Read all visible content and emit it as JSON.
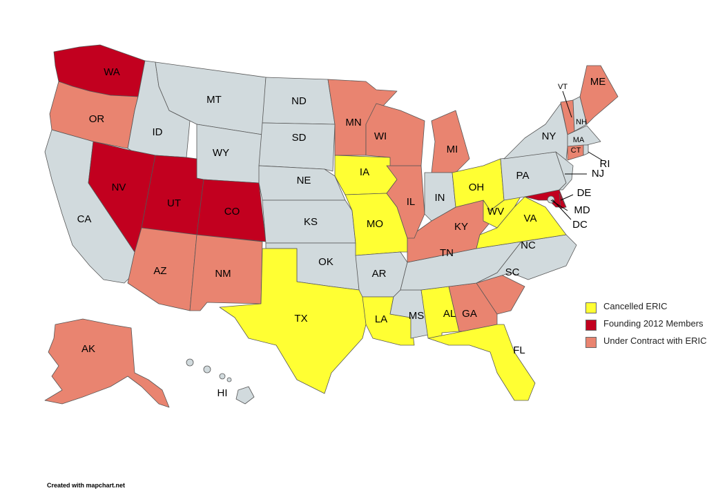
{
  "colors": {
    "cancelled": "#ffff33",
    "founding": "#c2001f",
    "contract": "#e98470",
    "default": "#d1dadd"
  },
  "legend": [
    {
      "key": "cancelled",
      "label": "Cancelled ERIC"
    },
    {
      "key": "founding",
      "label": "Founding 2012 Members"
    },
    {
      "key": "contract",
      "label": "Under Contract with ERIC"
    }
  ],
  "states": [
    {
      "code": "WA",
      "status": "founding"
    },
    {
      "code": "OR",
      "status": "contract"
    },
    {
      "code": "CA",
      "status": "default"
    },
    {
      "code": "ID",
      "status": "default"
    },
    {
      "code": "NV",
      "status": "founding"
    },
    {
      "code": "MT",
      "status": "default"
    },
    {
      "code": "WY",
      "status": "default"
    },
    {
      "code": "UT",
      "status": "founding"
    },
    {
      "code": "CO",
      "status": "founding"
    },
    {
      "code": "AZ",
      "status": "contract"
    },
    {
      "code": "NM",
      "status": "contract"
    },
    {
      "code": "ND",
      "status": "default"
    },
    {
      "code": "SD",
      "status": "default"
    },
    {
      "code": "NE",
      "status": "default"
    },
    {
      "code": "KS",
      "status": "default"
    },
    {
      "code": "OK",
      "status": "default"
    },
    {
      "code": "TX",
      "status": "cancelled"
    },
    {
      "code": "MN",
      "status": "contract"
    },
    {
      "code": "IA",
      "status": "cancelled"
    },
    {
      "code": "MO",
      "status": "cancelled"
    },
    {
      "code": "AR",
      "status": "default"
    },
    {
      "code": "LA",
      "status": "cancelled"
    },
    {
      "code": "MS",
      "status": "default"
    },
    {
      "code": "AL",
      "status": "cancelled"
    },
    {
      "code": "GA",
      "status": "contract"
    },
    {
      "code": "FL",
      "status": "cancelled"
    },
    {
      "code": "SC",
      "status": "contract"
    },
    {
      "code": "NC",
      "status": "default"
    },
    {
      "code": "TN",
      "status": "default"
    },
    {
      "code": "KY",
      "status": "contract"
    },
    {
      "code": "IL",
      "status": "contract"
    },
    {
      "code": "WI",
      "status": "contract"
    },
    {
      "code": "MI",
      "status": "contract"
    },
    {
      "code": "IN",
      "status": "default"
    },
    {
      "code": "OH",
      "status": "cancelled"
    },
    {
      "code": "WV",
      "status": "cancelled"
    },
    {
      "code": "VA",
      "status": "cancelled"
    },
    {
      "code": "MD",
      "status": "founding"
    },
    {
      "code": "PA",
      "status": "default"
    },
    {
      "code": "NY",
      "status": "default"
    },
    {
      "code": "NJ",
      "status": "default"
    },
    {
      "code": "VT",
      "status": "contract"
    },
    {
      "code": "NH",
      "status": "default"
    },
    {
      "code": "ME",
      "status": "contract"
    },
    {
      "code": "MA",
      "status": "default"
    },
    {
      "code": "CT",
      "status": "contract"
    },
    {
      "code": "RI",
      "status": "default"
    },
    {
      "code": "DE",
      "status": "founding"
    },
    {
      "code": "DC",
      "status": "default"
    },
    {
      "code": "AK",
      "status": "contract"
    },
    {
      "code": "HI",
      "status": "default"
    }
  ],
  "credit": "Created with mapchart.net"
}
